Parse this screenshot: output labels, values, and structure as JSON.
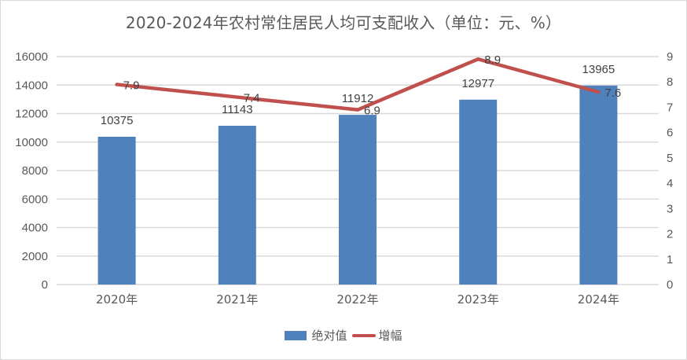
{
  "chart_data": {
    "type": "bar+line",
    "title": "2020-2024年农村常住居民人均可支配收入（单位：元、%）",
    "categories": [
      "2020年",
      "2021年",
      "2022年",
      "2023年",
      "2024年"
    ],
    "series": [
      {
        "name": "绝对值",
        "type": "bar",
        "axis": "left",
        "color": "#4f81bd",
        "values": [
          10375,
          11143,
          11912,
          12977,
          13965
        ]
      },
      {
        "name": "增幅",
        "type": "line",
        "axis": "right",
        "color": "#c0504d",
        "values": [
          7.9,
          7.4,
          6.9,
          8.9,
          7.6
        ]
      }
    ],
    "y_left": {
      "min": 0,
      "max": 16000,
      "step": 2000,
      "ticks": [
        "0",
        "2000",
        "4000",
        "6000",
        "8000",
        "10000",
        "12000",
        "14000",
        "16000"
      ]
    },
    "y_right": {
      "min": 0,
      "max": 9,
      "step": 1,
      "ticks": [
        "0",
        "1",
        "2",
        "3",
        "4",
        "5",
        "6",
        "7",
        "8",
        "9"
      ]
    },
    "xlabel": "",
    "ylabel": "",
    "grid": true,
    "legend_position": "bottom"
  },
  "legend": {
    "bar_label": "绝对值",
    "line_label": "增幅"
  }
}
